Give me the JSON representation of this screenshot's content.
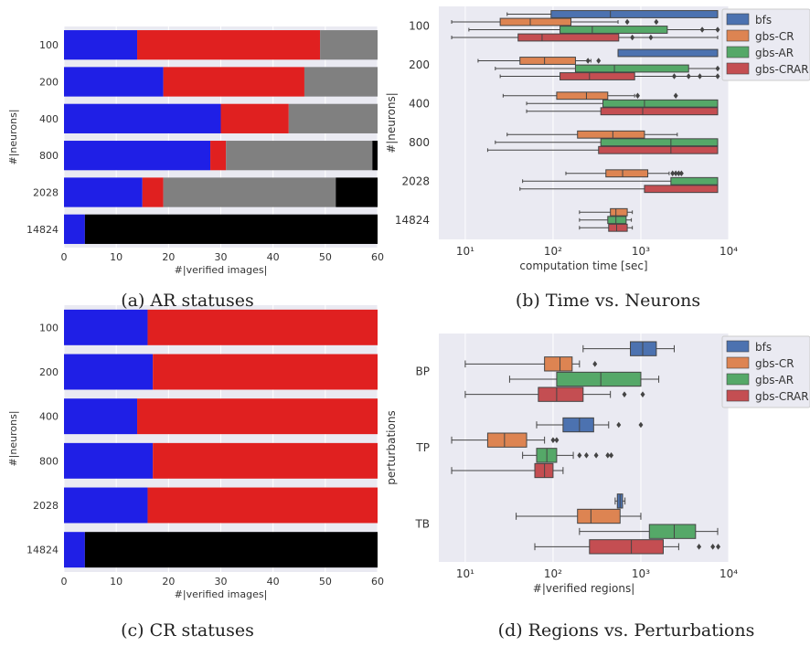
{
  "captions": [
    "(a) AR statuses",
    "(b) Time vs. Neurons",
    "(c) CR statuses",
    "(d) Regions vs. Perturbations"
  ],
  "colors": {
    "panel_bg": "#eaeaf2",
    "blue": "#1f1fe6",
    "red": "#e02020",
    "gray": "#808080",
    "black": "#000000",
    "bfs": "#4c72b0",
    "gbs-CR": "#dd8452",
    "gbs-AR": "#55a868",
    "gbs-CRAR": "#c44e52"
  },
  "chart_data": [
    {
      "type": "bar",
      "stacked": true,
      "orientation": "horizontal",
      "title": "",
      "xlabel": "#|verified images|",
      "ylabel": "#|neurons|",
      "xlim": [
        0,
        60
      ],
      "xticks": [
        0,
        10,
        20,
        30,
        40,
        50,
        60
      ],
      "categories": [
        "100",
        "200",
        "400",
        "800",
        "2028",
        "14824"
      ],
      "segment_colors": [
        "blue",
        "red",
        "gray",
        "black"
      ],
      "segments": [
        [
          14,
          35,
          11,
          0
        ],
        [
          19,
          27,
          14,
          0
        ],
        [
          30,
          13,
          17,
          0
        ],
        [
          28,
          3,
          28,
          1
        ],
        [
          15,
          4,
          33,
          8
        ],
        [
          4,
          0,
          0,
          56
        ]
      ]
    },
    {
      "type": "box",
      "orientation": "horizontal",
      "title": "",
      "xlabel": "computation time [sec]",
      "ylabel": "#|neurons|",
      "xscale": "log",
      "xlim": [
        5,
        10000
      ],
      "xticks": [
        10,
        100,
        1000,
        10000
      ],
      "xtick_labels": [
        "10¹",
        "10²",
        "10³",
        "10⁴"
      ],
      "categories": [
        "100",
        "200",
        "400",
        "800",
        "2028",
        "14824"
      ],
      "legend": {
        "entries": [
          "bfs",
          "gbs-CR",
          "gbs-AR",
          "gbs-CRAR"
        ],
        "placement": "top-right"
      },
      "series": [
        {
          "name": "bfs",
          "boxes": [
            [
              30,
              95,
              450,
              7500,
              7500,
              []
            ],
            [
              550,
              550,
              7500,
              7500,
              7500,
              []
            ],
            null,
            null,
            null,
            null
          ]
        },
        {
          "name": "gbs-CR",
          "boxes": [
            [
              7,
              25,
              55,
              160,
              550,
              [
                700,
                1500
              ]
            ],
            [
              14,
              42,
              80,
              180,
              270,
              [
                250,
                330
              ]
            ],
            [
              27,
              110,
              240,
              420,
              850,
              [
                920,
                2500
              ]
            ],
            [
              30,
              190,
              480,
              1100,
              2600,
              []
            ],
            [
              140,
              400,
              620,
              1200,
              2100,
              [
                2300,
                2500,
                2700,
                2900
              ]
            ],
            [
              200,
              450,
              520,
              700,
              800,
              []
            ]
          ]
        },
        {
          "name": "gbs-AR",
          "boxes": [
            [
              11,
              120,
              280,
              2000,
              7500,
              [
                5000,
                7500
              ]
            ],
            [
              22,
              180,
              500,
              3500,
              7500,
              [
                7500
              ]
            ],
            [
              50,
              370,
              1100,
              7500,
              7500,
              []
            ],
            [
              22,
              350,
              2200,
              7500,
              7500,
              []
            ],
            [
              45,
              2200,
              7500,
              7500,
              7500,
              []
            ],
            [
              200,
              420,
              520,
              680,
              780,
              []
            ]
          ]
        },
        {
          "name": "gbs-CRAR",
          "boxes": [
            [
              7,
              40,
              75,
              560,
              7500,
              [
                800,
                1300
              ]
            ],
            [
              25,
              120,
              260,
              850,
              7500,
              [
                2400,
                3500,
                4700,
                7500
              ]
            ],
            [
              50,
              350,
              1050,
              7500,
              7500,
              []
            ],
            [
              18,
              330,
              2200,
              7500,
              7500,
              []
            ],
            [
              42,
              1100,
              7500,
              7500,
              7500,
              []
            ],
            [
              200,
              430,
              530,
              700,
              800,
              []
            ]
          ]
        }
      ]
    },
    {
      "type": "bar",
      "stacked": true,
      "orientation": "horizontal",
      "title": "",
      "xlabel": "#|verified images|",
      "ylabel": "#|neurons|",
      "xlim": [
        0,
        60
      ],
      "xticks": [
        0,
        10,
        20,
        30,
        40,
        50,
        60
      ],
      "categories": [
        "100",
        "200",
        "400",
        "800",
        "2028",
        "14824"
      ],
      "segment_colors": [
        "blue",
        "red",
        "gray",
        "black"
      ],
      "segments": [
        [
          16,
          44,
          0,
          0
        ],
        [
          17,
          43,
          0,
          0
        ],
        [
          14,
          46,
          0,
          0
        ],
        [
          17,
          43,
          0,
          0
        ],
        [
          16,
          44,
          0,
          0
        ],
        [
          4,
          0,
          0,
          56
        ]
      ]
    },
    {
      "type": "box",
      "orientation": "horizontal",
      "title": "",
      "xlabel": "#|verified regions|",
      "ylabel": "perturbations",
      "xscale": "log",
      "xlim": [
        5,
        10000
      ],
      "xticks": [
        10,
        100,
        1000,
        10000
      ],
      "xtick_labels": [
        "10¹",
        "10²",
        "10³",
        "10⁴"
      ],
      "categories": [
        "BP",
        "TP",
        "TB"
      ],
      "legend": {
        "entries": [
          "bfs",
          "gbs-CR",
          "gbs-AR",
          "gbs-CRAR"
        ],
        "placement": "top-right"
      },
      "series": [
        {
          "name": "bfs",
          "boxes": [
            [
              220,
              760,
              1050,
              1500,
              2400,
              []
            ],
            [
              65,
              130,
              200,
              290,
              430,
              [
                560,
                1000
              ]
            ],
            [
              510,
              540,
              580,
              620,
              660,
              []
            ]
          ]
        },
        {
          "name": "gbs-CR",
          "boxes": [
            [
              10,
              80,
              120,
              165,
              200,
              [
                300
              ]
            ],
            [
              7,
              18,
              28,
              50,
              80,
              [
                100,
                110
              ]
            ],
            [
              38,
              190,
              270,
              580,
              1000,
              []
            ]
          ]
        },
        {
          "name": "gbs-AR",
          "boxes": [
            [
              32,
              110,
              350,
              1000,
              1600,
              []
            ],
            [
              45,
              65,
              85,
              110,
              170,
              [
                200,
                240,
                310,
                420,
                460
              ]
            ],
            [
              200,
              1250,
              2400,
              4200,
              7500,
              []
            ]
          ]
        },
        {
          "name": "gbs-CRAR",
          "boxes": [
            [
              10,
              68,
              110,
              220,
              450,
              [
                650,
                1050
              ]
            ],
            [
              7,
              62,
              80,
              100,
              130,
              []
            ],
            [
              62,
              260,
              780,
              1800,
              2700,
              [
                4600,
                6600,
                7600
              ]
            ]
          ]
        }
      ]
    }
  ]
}
